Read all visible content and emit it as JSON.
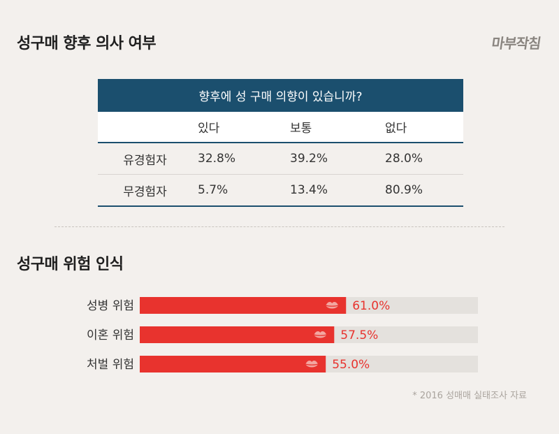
{
  "section1": {
    "title": "성구매 향후 의사 여부"
  },
  "logo": {
    "text": "마부작침"
  },
  "table": {
    "question": "향후에 성 구매 의향이 있습니까?",
    "columns": [
      "있다",
      "보통",
      "없다"
    ],
    "rows": [
      {
        "label": "유경험자",
        "values": [
          "32.8%",
          "39.2%",
          "28.0%"
        ]
      },
      {
        "label": "무경험자",
        "values": [
          "5.7%",
          "13.4%",
          "80.9%"
        ]
      }
    ]
  },
  "section2": {
    "title": "성구매 위험 인식"
  },
  "chart_data": {
    "type": "bar",
    "orientation": "horizontal",
    "title": "성구매 위험 인식",
    "categories": [
      "성병 위험",
      "이혼 위험",
      "처벌 위험"
    ],
    "values": [
      61.0,
      57.5,
      55.0
    ],
    "value_labels": [
      "61.0%",
      "57.5%",
      "55.0%"
    ],
    "xlim": [
      0,
      100
    ],
    "grid": false,
    "colors": {
      "bar": "#e8332e",
      "track": "#e4e1dd",
      "label": "#e8332e"
    },
    "marker_icon": "lips-icon"
  },
  "footnote": "* 2016 성매매 실태조사 자료"
}
